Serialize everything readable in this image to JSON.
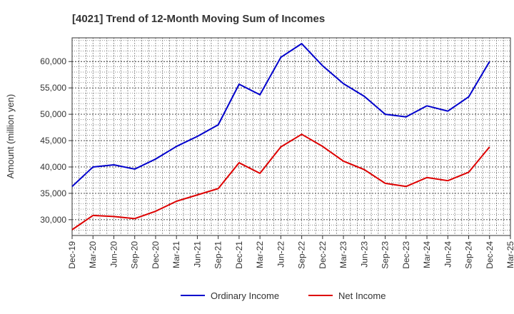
{
  "chart_data": {
    "type": "line",
    "title": "[4021]  Trend of 12-Month Moving Sum of Incomes",
    "xlabel": "",
    "ylabel": "Amount (million yen)",
    "ylim": [
      27000,
      64500
    ],
    "yticks": [
      30000,
      35000,
      40000,
      45000,
      50000,
      55000,
      60000
    ],
    "ytick_labels": [
      "30,000",
      "35,000",
      "40,000",
      "45,000",
      "50,000",
      "55,000",
      "60,000"
    ],
    "categories": [
      "Dec-19",
      "Mar-20",
      "Jun-20",
      "Sep-20",
      "Dec-20",
      "Mar-21",
      "Jun-21",
      "Sep-21",
      "Dec-21",
      "Mar-22",
      "Jun-22",
      "Sep-22",
      "Dec-22",
      "Mar-23",
      "Jun-23",
      "Sep-23",
      "Dec-23",
      "Mar-24",
      "Jun-24",
      "Sep-24",
      "Dec-24",
      "Mar-25"
    ],
    "grid": true,
    "legend_position": "bottom",
    "series": [
      {
        "name": "Ordinary Income",
        "color": "#0000cc",
        "values": [
          36300,
          40000,
          40400,
          39600,
          41500,
          43900,
          45800,
          48000,
          55700,
          53700,
          60800,
          63400,
          59200,
          55800,
          53400,
          50000,
          49500,
          51600,
          50600,
          53300,
          60000,
          null
        ]
      },
      {
        "name": "Net Income",
        "color": "#dd0000",
        "values": [
          28100,
          30800,
          30600,
          30200,
          31600,
          33500,
          34700,
          35900,
          40800,
          38800,
          43800,
          46200,
          43900,
          41100,
          39500,
          36900,
          36300,
          38000,
          37400,
          39000,
          43800,
          null
        ]
      }
    ]
  }
}
